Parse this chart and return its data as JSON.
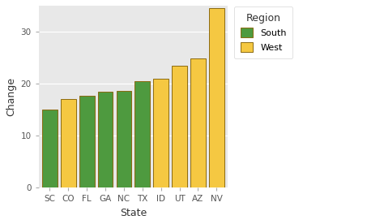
{
  "states": [
    "SC",
    "CO",
    "FL",
    "GA",
    "NC",
    "TX",
    "ID",
    "UT",
    "AZ",
    "NV"
  ],
  "values": [
    15.1,
    17.1,
    17.7,
    18.4,
    18.6,
    20.5,
    21.0,
    23.4,
    24.8,
    34.5
  ],
  "regions": [
    "South",
    "West",
    "South",
    "South",
    "South",
    "South",
    "West",
    "West",
    "West",
    "West"
  ],
  "colors": {
    "South": "#4e9a3f",
    "West": "#f5c842"
  },
  "edge_color": "#8B6A10",
  "xlabel": "State",
  "ylabel": "Change",
  "ylim": [
    0,
    35
  ],
  "yticks": [
    0,
    10,
    20,
    30
  ],
  "plot_bg": "#e8e8e8",
  "fig_bg": "#ffffff",
  "grid_color": "#ffffff",
  "legend_title": "Region",
  "legend_entries": [
    "South",
    "West"
  ]
}
